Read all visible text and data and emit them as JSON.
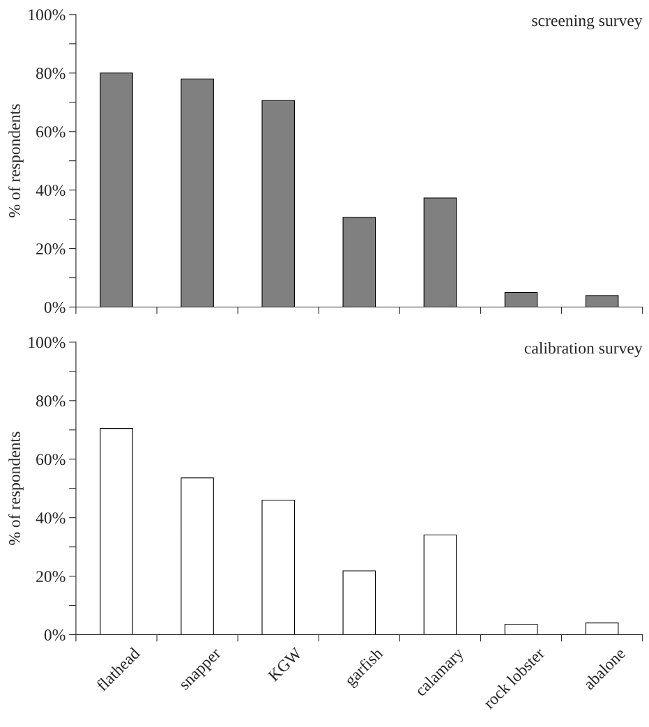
{
  "chart_data": [
    {
      "type": "bar",
      "title": "screening survey",
      "ylabel": "% of respondents",
      "categories": [
        null,
        null,
        null,
        null,
        null,
        null,
        null
      ],
      "values": [
        80,
        78,
        70.6,
        30.7,
        37.3,
        5.0,
        3.9
      ],
      "color": "#808080",
      "ylim": [
        0,
        100
      ],
      "yticks": [
        {
          "value": 0,
          "label": "0%"
        },
        {
          "value": 10,
          "label": null
        },
        {
          "value": 20,
          "label": "20%"
        },
        {
          "value": 30,
          "label": null
        },
        {
          "value": 40,
          "label": "40%"
        },
        {
          "value": 50,
          "label": null
        },
        {
          "value": 60,
          "label": "60%"
        },
        {
          "value": 70,
          "label": null
        },
        {
          "value": 80,
          "label": "80%"
        },
        {
          "value": 90,
          "label": null
        },
        {
          "value": 100,
          "label": "100%"
        }
      ],
      "tick_labels": "y",
      "grid": false,
      "legend": false
    },
    {
      "type": "bar",
      "title": "calibration survey",
      "ylabel": "% of respondents",
      "categories": [
        "flathead",
        "snapper",
        "KGW",
        "garfish",
        "calamary",
        "rock lobster",
        "abalone"
      ],
      "values": [
        70.5,
        53.6,
        46.0,
        21.8,
        34.1,
        3.6,
        4.0
      ],
      "color": "#ffffff",
      "ylim": [
        0,
        100
      ],
      "yticks": [
        {
          "value": 0,
          "label": "0%"
        },
        {
          "value": 10,
          "label": null
        },
        {
          "value": 20,
          "label": "20%"
        },
        {
          "value": 30,
          "label": null
        },
        {
          "value": 40,
          "label": "40%"
        },
        {
          "value": 50,
          "label": null
        },
        {
          "value": 60,
          "label": "60%"
        },
        {
          "value": 70,
          "label": null
        },
        {
          "value": 80,
          "label": "80%"
        },
        {
          "value": 90,
          "label": null
        },
        {
          "value": 100,
          "label": "100%"
        }
      ],
      "grid": false,
      "legend": false
    }
  ]
}
